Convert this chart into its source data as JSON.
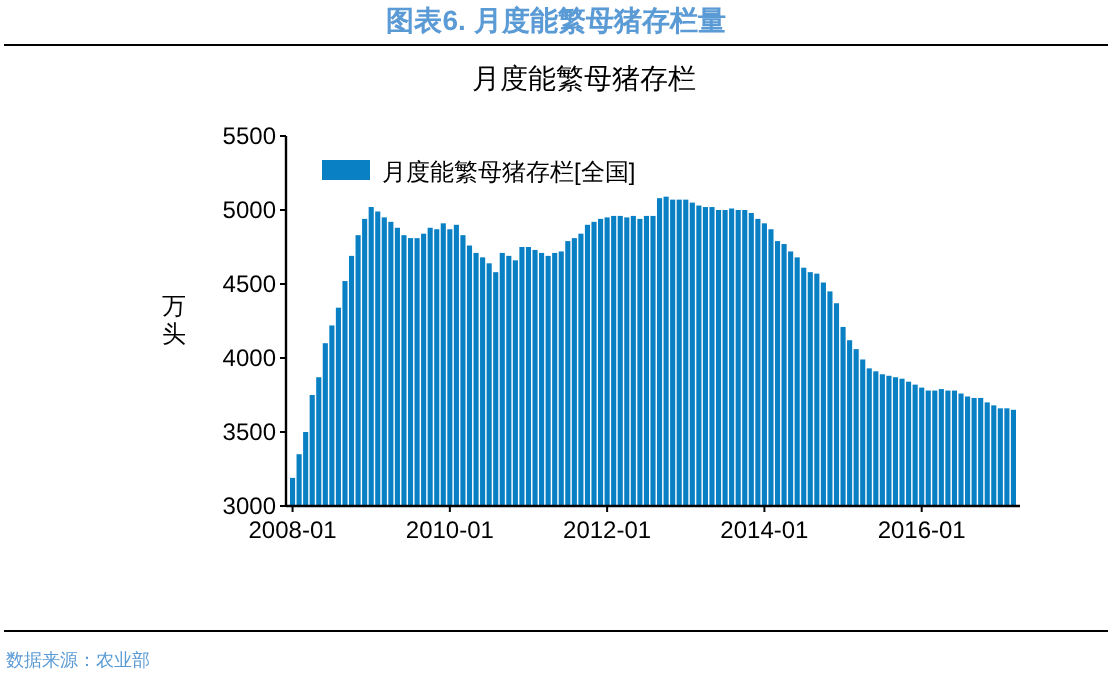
{
  "chart_data": {
    "type": "bar",
    "title": "图表6.  月度能繁母猪存栏量",
    "subtitle": "月度能繁母猪存栏",
    "ylabel": "万头",
    "annotations": [
      "数据来源：农业部"
    ],
    "x": [
      "2008-01",
      "2008-02",
      "2008-03",
      "2008-04",
      "2008-05",
      "2008-06",
      "2008-07",
      "2008-08",
      "2008-09",
      "2008-10",
      "2008-11",
      "2008-12",
      "2009-01",
      "2009-02",
      "2009-03",
      "2009-04",
      "2009-05",
      "2009-06",
      "2009-07",
      "2009-08",
      "2009-09",
      "2009-10",
      "2009-11",
      "2009-12",
      "2010-01",
      "2010-02",
      "2010-03",
      "2010-04",
      "2010-05",
      "2010-06",
      "2010-07",
      "2010-08",
      "2010-09",
      "2010-10",
      "2010-11",
      "2010-12",
      "2011-01",
      "2011-02",
      "2011-03",
      "2011-04",
      "2011-05",
      "2011-06",
      "2011-07",
      "2011-08",
      "2011-09",
      "2011-10",
      "2011-11",
      "2011-12",
      "2012-01",
      "2012-02",
      "2012-03",
      "2012-04",
      "2012-05",
      "2012-06",
      "2012-07",
      "2012-08",
      "2012-09",
      "2012-10",
      "2012-11",
      "2012-12",
      "2013-01",
      "2013-02",
      "2013-03",
      "2013-04",
      "2013-05",
      "2013-06",
      "2013-07",
      "2013-08",
      "2013-09",
      "2013-10",
      "2013-11",
      "2013-12",
      "2014-01",
      "2014-02",
      "2014-03",
      "2014-04",
      "2014-05",
      "2014-06",
      "2014-07",
      "2014-08",
      "2014-09",
      "2014-10",
      "2014-11",
      "2014-12",
      "2015-01",
      "2015-02",
      "2015-03",
      "2015-04",
      "2015-05",
      "2015-06",
      "2015-07",
      "2015-08",
      "2015-09",
      "2015-10",
      "2015-11",
      "2015-12",
      "2016-01",
      "2016-02",
      "2016-03",
      "2016-04",
      "2016-05",
      "2016-06",
      "2016-07",
      "2016-08",
      "2016-09",
      "2016-10",
      "2016-11",
      "2016-12",
      "2017-01",
      "2017-02",
      "2017-03"
    ],
    "series": [
      {
        "name": "月度能繁母猪存栏[全国]",
        "color": "#0a80c4",
        "values": [
          3190,
          3350,
          3500,
          3750,
          3870,
          4100,
          4220,
          4340,
          4520,
          4690,
          4830,
          4940,
          5020,
          4990,
          4950,
          4920,
          4880,
          4830,
          4810,
          4810,
          4840,
          4880,
          4870,
          4910,
          4870,
          4900,
          4830,
          4760,
          4710,
          4680,
          4640,
          4580,
          4710,
          4690,
          4660,
          4750,
          4750,
          4730,
          4710,
          4690,
          4710,
          4720,
          4790,
          4810,
          4840,
          4900,
          4920,
          4940,
          4950,
          4960,
          4960,
          4950,
          4960,
          4940,
          4960,
          4960,
          5080,
          5090,
          5070,
          5070,
          5070,
          5050,
          5030,
          5020,
          5020,
          5000,
          5000,
          5010,
          5000,
          5000,
          4980,
          4940,
          4910,
          4870,
          4790,
          4770,
          4720,
          4680,
          4610,
          4580,
          4570,
          4510,
          4450,
          4370,
          4210,
          4120,
          4060,
          3990,
          3930,
          3910,
          3890,
          3880,
          3870,
          3860,
          3840,
          3820,
          3800,
          3780,
          3780,
          3790,
          3780,
          3780,
          3760,
          3740,
          3730,
          3730,
          3700,
          3680,
          3660,
          3660,
          3650
        ]
      }
    ],
    "xlim": [
      "2007-12",
      "2017-04"
    ],
    "xticks": [
      "2008-01",
      "2010-01",
      "2012-01",
      "2014-01",
      "2016-01"
    ],
    "ylim": [
      3000,
      5500
    ],
    "yticks": [
      3000,
      3500,
      4000,
      4500,
      5000,
      5500
    ],
    "legend": "top left"
  }
}
